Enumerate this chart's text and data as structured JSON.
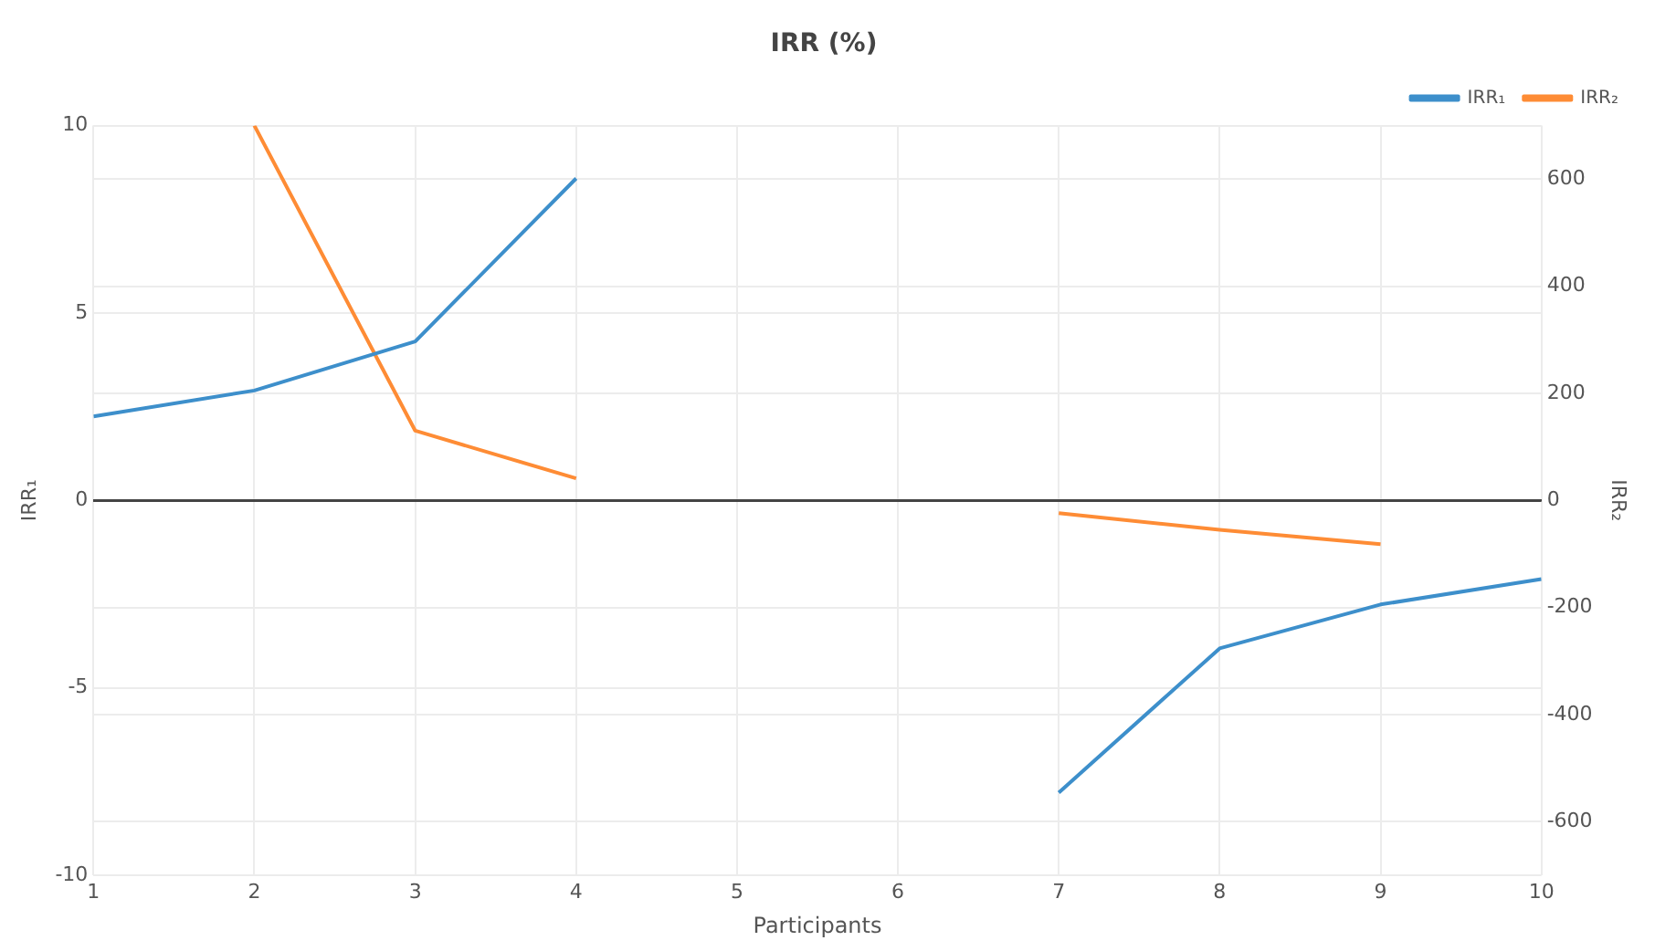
{
  "chart_data": {
    "type": "line",
    "title": "IRR (%)",
    "xlabel": "Participants",
    "ylabel": "IRR₁",
    "y2label": "IRR₂",
    "x": [
      1,
      2,
      3,
      4,
      5,
      6,
      7,
      8,
      9,
      10
    ],
    "xlim": [
      1,
      10
    ],
    "xticks": [
      1,
      2,
      3,
      4,
      5,
      6,
      7,
      8,
      9,
      10
    ],
    "ylim": [
      -10,
      10
    ],
    "yticks": [
      -10,
      -5,
      0,
      5,
      10
    ],
    "y2lim": [
      -700,
      700
    ],
    "y2ticks": [
      -600,
      -400,
      -200,
      0,
      200,
      400,
      600
    ],
    "series": [
      {
        "name": "IRR₁",
        "color": "#3d8fcb",
        "values": [
          2.24,
          2.93,
          4.24,
          8.59,
          null,
          null,
          -7.8,
          -3.95,
          -2.78,
          -2.1
        ]
      },
      {
        "name": "IRR₂",
        "color": "#fe8c35",
        "axis": "y2",
        "values": [
          null,
          700,
          130,
          41,
          null,
          null,
          -24,
          -55,
          -82,
          null
        ]
      }
    ],
    "grid": true,
    "legend": "top right",
    "marker": "none",
    "line_style": "solid"
  }
}
